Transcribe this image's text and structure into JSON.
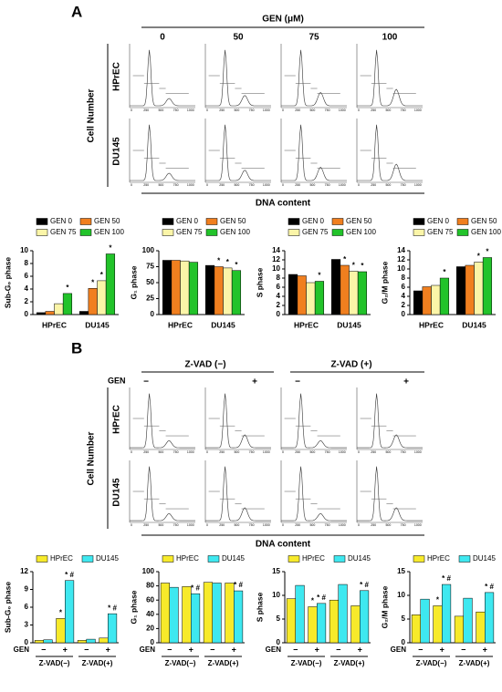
{
  "panel_a": {
    "label": "A",
    "header": "GEN (μM)",
    "columns": [
      "0",
      "50",
      "75",
      "100"
    ],
    "rows": [
      "HPrEC",
      "DU145"
    ],
    "y_label": "Cell Number",
    "x_label": "DNA content"
  },
  "panel_b": {
    "label": "B",
    "gen_label": "GEN",
    "groups": [
      "Z-VAD (−)",
      "Z-VAD (+)"
    ],
    "signs": [
      "−",
      "+",
      "−",
      "+"
    ],
    "rows": [
      "HPrEC",
      "DU145"
    ],
    "y_label": "Cell Number",
    "x_label": "DNA content"
  },
  "histogram_ticks": [
    "0",
    "250",
    "500",
    "750",
    "1000"
  ],
  "chart_data": [
    {
      "type": "bar",
      "y_label": "Sub-G₀ phase",
      "categories": [
        "HPrEC",
        "DU145"
      ],
      "ylim": [
        0,
        10
      ],
      "yticks": [
        0,
        2,
        4,
        6,
        8,
        10
      ],
      "series": [
        {
          "name": "GEN 0",
          "color": "#000000",
          "values": [
            0.3,
            0.5
          ],
          "annotations": [
            null,
            null
          ]
        },
        {
          "name": "GEN 50",
          "color": "#f07f1f",
          "values": [
            0.5,
            4.1
          ],
          "annotations": [
            null,
            "*"
          ]
        },
        {
          "name": "GEN 75",
          "color": "#fbf5a8",
          "values": [
            1.7,
            5.3
          ],
          "annotations": [
            null,
            "*"
          ]
        },
        {
          "name": "GEN 100",
          "color": "#22c32a",
          "values": [
            3.3,
            9.5
          ],
          "annotations": [
            "*",
            "*"
          ]
        }
      ]
    },
    {
      "type": "bar",
      "y_label": "G₁ phase",
      "categories": [
        "HPrEC",
        "DU145"
      ],
      "ylim": [
        0,
        100
      ],
      "yticks": [
        0,
        25,
        50,
        75,
        100
      ],
      "series": [
        {
          "name": "GEN 0",
          "color": "#000000",
          "values": [
            85,
            77
          ],
          "annotations": [
            null,
            null
          ]
        },
        {
          "name": "GEN 50",
          "color": "#f07f1f",
          "values": [
            85,
            75
          ],
          "annotations": [
            null,
            "*"
          ]
        },
        {
          "name": "GEN 75",
          "color": "#fbf5a8",
          "values": [
            84,
            73
          ],
          "annotations": [
            null,
            "*"
          ]
        },
        {
          "name": "GEN 100",
          "color": "#22c32a",
          "values": [
            82,
            69
          ],
          "annotations": [
            null,
            "*"
          ]
        }
      ]
    },
    {
      "type": "bar",
      "y_label": "S phase",
      "categories": [
        "HPrEC",
        "DU145"
      ],
      "ylim": [
        0,
        14
      ],
      "yticks": [
        0,
        2,
        4,
        6,
        8,
        10,
        12,
        14
      ],
      "series": [
        {
          "name": "GEN 0",
          "color": "#000000",
          "values": [
            8.8,
            12.1
          ],
          "annotations": [
            null,
            null
          ]
        },
        {
          "name": "GEN 50",
          "color": "#f07f1f",
          "values": [
            8.5,
            10.8
          ],
          "annotations": [
            null,
            "*"
          ]
        },
        {
          "name": "GEN 75",
          "color": "#fbf5a8",
          "values": [
            7.0,
            9.5
          ],
          "annotations": [
            null,
            "*"
          ]
        },
        {
          "name": "GEN 100",
          "color": "#22c32a",
          "values": [
            7.3,
            9.4
          ],
          "annotations": [
            "*",
            "*"
          ]
        }
      ]
    },
    {
      "type": "bar",
      "y_label": "G₂/M phase",
      "categories": [
        "HPrEC",
        "DU145"
      ],
      "ylim": [
        0,
        14
      ],
      "yticks": [
        0,
        2,
        4,
        6,
        8,
        10,
        12,
        14
      ],
      "series": [
        {
          "name": "GEN 0",
          "color": "#000000",
          "values": [
            5.2,
            10.5
          ],
          "annotations": [
            null,
            null
          ]
        },
        {
          "name": "GEN 50",
          "color": "#f07f1f",
          "values": [
            6.1,
            10.8
          ],
          "annotations": [
            null,
            null
          ]
        },
        {
          "name": "GEN 75",
          "color": "#fbf5a8",
          "values": [
            6.4,
            11.5
          ],
          "annotations": [
            null,
            "*"
          ]
        },
        {
          "name": "GEN 100",
          "color": "#22c32a",
          "values": [
            8.0,
            12.5
          ],
          "annotations": [
            "*",
            "*"
          ]
        }
      ]
    },
    {
      "type": "bar",
      "y_label": "Sub-G₀ phase",
      "x_label": "GEN",
      "categories": [
        "−",
        "+",
        "−",
        "+"
      ],
      "groups": [
        "Z-VAD(−)",
        "Z-VAD(+)"
      ],
      "ylim": [
        0,
        12
      ],
      "yticks": [
        0,
        3,
        6,
        9,
        12
      ],
      "series": [
        {
          "name": "HPrEC",
          "color": "#f7ea2a",
          "values": [
            0.4,
            4.1,
            0.4,
            0.8
          ],
          "annotations": [
            null,
            "*",
            null,
            null
          ]
        },
        {
          "name": "DU145",
          "color": "#3ee8f0",
          "values": [
            0.5,
            10.5,
            0.6,
            4.9
          ],
          "annotations": [
            null,
            "* #",
            null,
            "* #"
          ]
        }
      ]
    },
    {
      "type": "bar",
      "y_label": "G₁ phase",
      "x_label": "GEN",
      "categories": [
        "−",
        "+",
        "−",
        "+"
      ],
      "groups": [
        "Z-VAD(−)",
        "Z-VAD(+)"
      ],
      "ylim": [
        0,
        100
      ],
      "yticks": [
        0,
        20,
        40,
        60,
        80,
        100
      ],
      "series": [
        {
          "name": "HPrEC",
          "color": "#f7ea2a",
          "values": [
            84,
            79,
            85,
            84
          ],
          "annotations": [
            null,
            null,
            null,
            null
          ]
        },
        {
          "name": "DU145",
          "color": "#3ee8f0",
          "values": [
            78,
            69,
            84,
            73
          ],
          "annotations": [
            null,
            "* #",
            null,
            "* #"
          ]
        }
      ]
    },
    {
      "type": "bar",
      "y_label": "S phase",
      "x_label": "GEN",
      "categories": [
        "−",
        "+",
        "−",
        "+"
      ],
      "groups": [
        "Z-VAD(−)",
        "Z-VAD(+)"
      ],
      "ylim": [
        0,
        15
      ],
      "yticks": [
        0,
        5,
        10,
        15
      ],
      "series": [
        {
          "name": "HPrEC",
          "color": "#f7ea2a",
          "values": [
            9.3,
            7.6,
            9.0,
            7.8
          ],
          "annotations": [
            null,
            "*",
            null,
            null
          ]
        },
        {
          "name": "DU145",
          "color": "#3ee8f0",
          "values": [
            12.1,
            8.3,
            12.3,
            11.0
          ],
          "annotations": [
            null,
            "* #",
            null,
            "* #"
          ]
        }
      ]
    },
    {
      "type": "bar",
      "y_label": "G₂/M phase",
      "x_label": "GEN",
      "categories": [
        "−",
        "+",
        "−",
        "+"
      ],
      "groups": [
        "Z-VAD(−)",
        "Z-VAD(+)"
      ],
      "ylim": [
        0,
        15
      ],
      "yticks": [
        0,
        5,
        10,
        15
      ],
      "series": [
        {
          "name": "HPrEC",
          "color": "#f7ea2a",
          "values": [
            5.9,
            7.8,
            5.6,
            6.5
          ],
          "annotations": [
            null,
            "*",
            null,
            null
          ]
        },
        {
          "name": "DU145",
          "color": "#3ee8f0",
          "values": [
            9.2,
            12.3,
            9.4,
            10.6
          ],
          "annotations": [
            null,
            "* #",
            null,
            "* #"
          ]
        }
      ]
    }
  ]
}
